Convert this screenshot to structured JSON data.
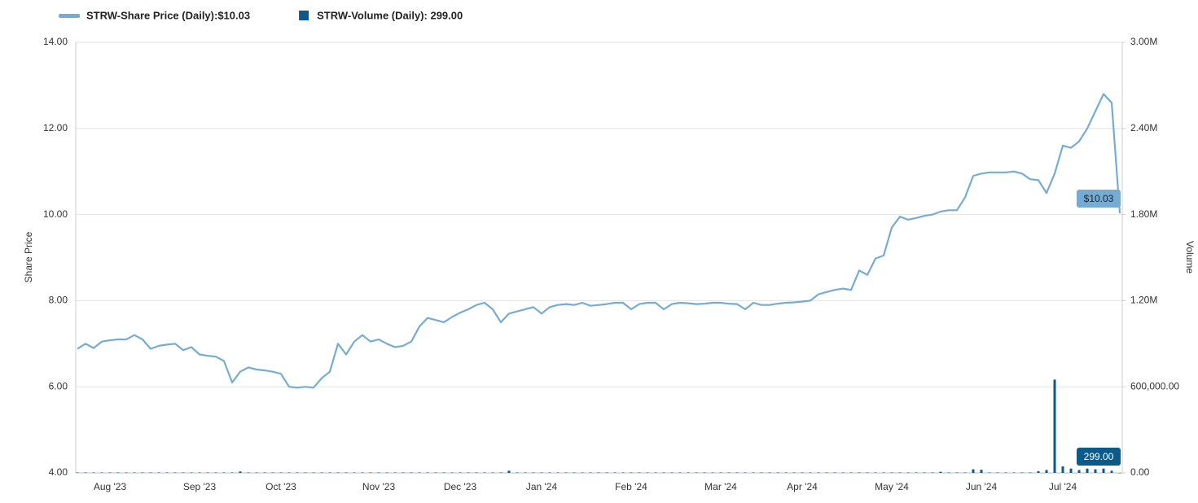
{
  "chart_data": {
    "type": "line-bar",
    "y_label": "Share Price",
    "y2_label": "Volume",
    "ylim": [
      4,
      14
    ],
    "yticks": [
      {
        "value": 4,
        "label": "4.00"
      },
      {
        "value": 6,
        "label": "6.00"
      },
      {
        "value": 8,
        "label": "8.00"
      },
      {
        "value": 10,
        "label": "10.00"
      },
      {
        "value": 12,
        "label": "12.00"
      },
      {
        "value": 14,
        "label": "14.00"
      }
    ],
    "y2lim": [
      0,
      3000000
    ],
    "y2ticks": [
      {
        "value": 0,
        "label": "0.00"
      },
      {
        "value": 600000,
        "label": "600,000.00"
      },
      {
        "value": 1200000,
        "label": "1.20M"
      },
      {
        "value": 1800000,
        "label": "1.80M"
      },
      {
        "value": 2400000,
        "label": "2.40M"
      },
      {
        "value": 3000000,
        "label": "3.00M"
      }
    ],
    "grid": true,
    "categories": [
      null,
      null,
      null,
      null,
      "Aug '23",
      null,
      null,
      null,
      null,
      null,
      null,
      null,
      null,
      null,
      null,
      "Sep '23",
      null,
      null,
      null,
      null,
      null,
      null,
      null,
      null,
      null,
      "Oct '23",
      null,
      null,
      null,
      null,
      null,
      null,
      null,
      null,
      null,
      null,
      null,
      "Nov '23",
      null,
      null,
      null,
      null,
      null,
      null,
      null,
      null,
      null,
      "Dec '23",
      null,
      null,
      null,
      null,
      null,
      null,
      null,
      null,
      null,
      "Jan '24",
      null,
      null,
      null,
      null,
      null,
      null,
      null,
      null,
      null,
      null,
      "Feb '24",
      null,
      null,
      null,
      null,
      null,
      null,
      null,
      null,
      null,
      null,
      "Mar '24",
      null,
      null,
      null,
      null,
      null,
      null,
      null,
      null,
      null,
      "Apr '24",
      null,
      null,
      null,
      null,
      null,
      null,
      null,
      null,
      null,
      null,
      "May '24",
      null,
      null,
      null,
      null,
      null,
      null,
      null,
      null,
      null,
      null,
      "Jun '24",
      null,
      null,
      null,
      null,
      null,
      null,
      null,
      null,
      null,
      "Jul '24",
      null,
      null,
      null,
      null,
      null,
      null,
      null
    ],
    "series": [
      {
        "name": "STRW-Share Price (Daily):$10.03",
        "color": "#76acd3",
        "kind": "line",
        "values": [
          6.88,
          7.0,
          6.9,
          7.05,
          7.08,
          7.1,
          7.1,
          7.2,
          7.1,
          6.88,
          6.95,
          6.98,
          7.0,
          6.85,
          6.92,
          6.75,
          6.72,
          6.7,
          6.6,
          6.1,
          6.35,
          6.45,
          6.4,
          6.38,
          6.35,
          6.3,
          6.0,
          5.98,
          6.0,
          5.98,
          6.2,
          6.35,
          7.0,
          6.75,
          7.05,
          7.2,
          7.05,
          7.1,
          7.0,
          6.92,
          6.95,
          7.05,
          7.4,
          7.6,
          7.55,
          7.5,
          7.62,
          7.72,
          7.8,
          7.9,
          7.95,
          7.8,
          7.5,
          7.7,
          7.75,
          7.8,
          7.85,
          7.7,
          7.85,
          7.9,
          7.92,
          7.9,
          7.95,
          7.88,
          7.9,
          7.92,
          7.95,
          7.95,
          7.8,
          7.92,
          7.95,
          7.95,
          7.8,
          7.92,
          7.95,
          7.94,
          7.92,
          7.93,
          7.95,
          7.95,
          7.93,
          7.92,
          7.8,
          7.95,
          7.9,
          7.9,
          7.93,
          7.95,
          7.96,
          7.98,
          8.0,
          8.15,
          8.2,
          8.25,
          8.28,
          8.25,
          8.7,
          8.6,
          8.98,
          9.05,
          9.7,
          9.95,
          9.88,
          9.92,
          9.97,
          10.0,
          10.07,
          10.1,
          10.1,
          10.4,
          10.9,
          10.95,
          10.98,
          10.98,
          10.98,
          11.0,
          10.95,
          10.82,
          10.8,
          10.5,
          10.95,
          11.6,
          11.55,
          11.7,
          12.0,
          12.4,
          12.8,
          12.6,
          10.03
        ],
        "value_labels": [
          null,
          null,
          null,
          null,
          null,
          null,
          null,
          null,
          null,
          null,
          null,
          null,
          null,
          null,
          null,
          null,
          null,
          null,
          null,
          null,
          null,
          null,
          null,
          null,
          null,
          null,
          null,
          null,
          null,
          null,
          null,
          null,
          null,
          null,
          null,
          null,
          null,
          null,
          null,
          null,
          null,
          null,
          null,
          null,
          null,
          null,
          null,
          null,
          null,
          null,
          null,
          null,
          null,
          null,
          null,
          null,
          null,
          null,
          null,
          null,
          null,
          null,
          null,
          null,
          null,
          null,
          null,
          null,
          null,
          null,
          null,
          null,
          null,
          null,
          null,
          null,
          null,
          null,
          null,
          null,
          null,
          null,
          null,
          null,
          null,
          null,
          null,
          null,
          null,
          null,
          null,
          null,
          null,
          null,
          null,
          null,
          null,
          null,
          null,
          null,
          null,
          null,
          null,
          null,
          null,
          null,
          null,
          null,
          null,
          null,
          null,
          null,
          null,
          null,
          null,
          null,
          null,
          null,
          null,
          null,
          null,
          null,
          null,
          null,
          null,
          null,
          null,
          null,
          "$10.03"
        ]
      },
      {
        "name": "STRW-Volume (Daily): 299.00",
        "color": "#0b5a8a",
        "kind": "bar",
        "axis": "y2",
        "values": [
          3000,
          3000,
          3000,
          3000,
          3000,
          3000,
          3000,
          3000,
          3000,
          3000,
          3000,
          3000,
          3000,
          3000,
          3000,
          3000,
          3000,
          3000,
          3000,
          3000,
          10000,
          3000,
          3000,
          3000,
          3000,
          3000,
          3000,
          3000,
          3000,
          3000,
          3000,
          3000,
          3000,
          3000,
          3000,
          3000,
          3000,
          3000,
          3000,
          3000,
          3000,
          3000,
          3000,
          3000,
          3000,
          3000,
          3000,
          3000,
          3000,
          3000,
          3000,
          3000,
          3000,
          15000,
          3000,
          3000,
          3000,
          3000,
          3000,
          3000,
          3000,
          3000,
          3000,
          3000,
          3000,
          3000,
          3000,
          3000,
          3000,
          3000,
          3000,
          3000,
          3000,
          3000,
          3000,
          3000,
          3000,
          3000,
          3000,
          3000,
          3000,
          3000,
          3000,
          3000,
          3000,
          3000,
          3000,
          3000,
          3000,
          3000,
          3000,
          3000,
          3000,
          3000,
          3000,
          3000,
          3000,
          3000,
          3000,
          3000,
          3000,
          3000,
          3000,
          3000,
          3000,
          3000,
          8000,
          3000,
          3000,
          3000,
          25000,
          22000,
          3000,
          3000,
          3000,
          3000,
          3000,
          3000,
          12000,
          20000,
          650000,
          45000,
          30000,
          20000,
          30000,
          25000,
          30000,
          15000,
          299
        ],
        "value_labels": [
          null,
          null,
          null,
          null,
          null,
          null,
          null,
          null,
          null,
          null,
          null,
          null,
          null,
          null,
          null,
          null,
          null,
          null,
          null,
          null,
          null,
          null,
          null,
          null,
          null,
          null,
          null,
          null,
          null,
          null,
          null,
          null,
          null,
          null,
          null,
          null,
          null,
          null,
          null,
          null,
          null,
          null,
          null,
          null,
          null,
          null,
          null,
          null,
          null,
          null,
          null,
          null,
          null,
          null,
          null,
          null,
          null,
          null,
          null,
          null,
          null,
          null,
          null,
          null,
          null,
          null,
          null,
          null,
          null,
          null,
          null,
          null,
          null,
          null,
          null,
          null,
          null,
          null,
          null,
          null,
          null,
          null,
          null,
          null,
          null,
          null,
          null,
          null,
          null,
          null,
          null,
          null,
          null,
          null,
          null,
          null,
          null,
          null,
          null,
          null,
          null,
          null,
          null,
          null,
          null,
          null,
          null,
          null,
          null,
          null,
          null,
          null,
          null,
          null,
          null,
          null,
          null,
          null,
          null,
          null,
          null,
          null,
          null,
          null,
          null,
          null,
          null,
          null,
          "299.00"
        ]
      }
    ]
  }
}
